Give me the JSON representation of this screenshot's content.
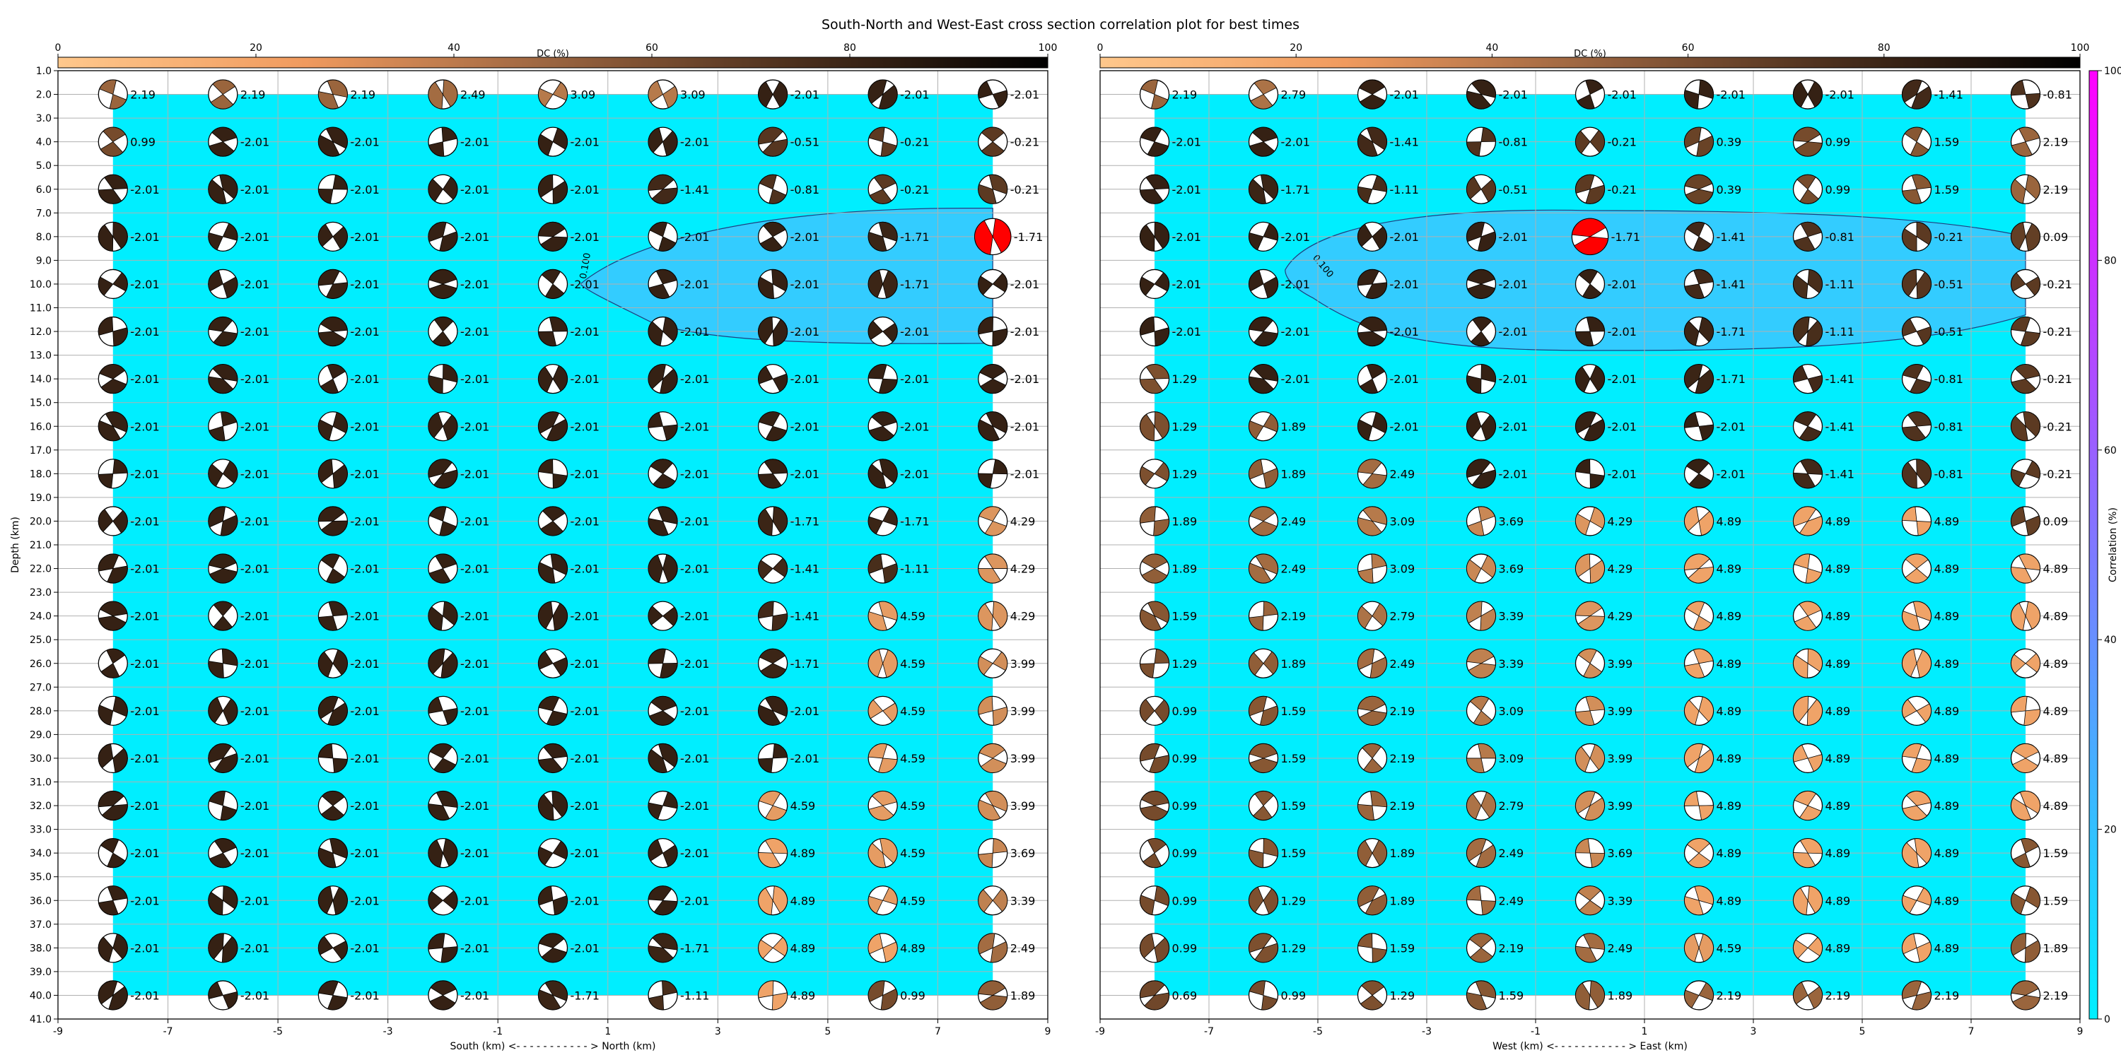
{
  "title": "South-North and West-East cross section correlation plot for best times",
  "colors": {
    "bg": "#00eeff",
    "region": "#33ccff",
    "region_line": "#1f3f7f",
    "beach_light": "#f2a66a",
    "beach_mid": "#7c4f2e",
    "beach_dark": "#2a1a10",
    "best_fill": "#ff0000",
    "corr_bottom": "#00f0ff",
    "corr_top": "#ff00ff"
  },
  "dc_colorbar": {
    "label": "DC (%)",
    "ticks": [
      0,
      20,
      40,
      60,
      80,
      100
    ]
  },
  "corr_colorbar": {
    "label": "Correlation (%)",
    "ticks": [
      0,
      20,
      40,
      60,
      80,
      100
    ]
  },
  "chart_data": [
    {
      "type": "scatter",
      "name": "south-north",
      "xlabel": "South (km) <- - - - - - - - - - - > North (km)",
      "ylabel": "Depth (km)",
      "xlim": [
        -9,
        9
      ],
      "ylim": [
        41,
        1
      ],
      "xticks": [
        -9,
        -7,
        -5,
        -3,
        -1,
        1,
        3,
        5,
        7,
        9
      ],
      "yticks": [
        1,
        2,
        3,
        4,
        5,
        6,
        7,
        8,
        9,
        10,
        11,
        12,
        13,
        14,
        15,
        16,
        17,
        18,
        19,
        20,
        21,
        22,
        23,
        24,
        25,
        26,
        27,
        28,
        29,
        30,
        31,
        32,
        33,
        34,
        35,
        36,
        37,
        38,
        39,
        40,
        41
      ],
      "contour_label": "0.100",
      "x_positions": [
        -8,
        -6,
        -4,
        -2,
        0,
        2,
        4,
        6,
        8
      ],
      "depths": [
        2,
        4,
        6,
        8,
        10,
        12,
        14,
        16,
        18,
        20,
        22,
        24,
        26,
        28,
        30,
        32,
        34,
        36,
        38,
        40
      ],
      "best": {
        "x": 8,
        "depth": 8
      },
      "labels": [
        [
          "2.19",
          "2.19",
          "2.19",
          "2.49",
          "3.09",
          "3.09",
          "-2.01",
          "-2.01",
          "-2.01"
        ],
        [
          "0.99",
          "-2.01",
          "-2.01",
          "-2.01",
          "-2.01",
          "-2.01",
          "-0.51",
          "-0.21",
          "-0.21"
        ],
        [
          "-2.01",
          "-2.01",
          "-2.01",
          "-2.01",
          "-2.01",
          "-1.41",
          "-0.81",
          "-0.21",
          "-0.21"
        ],
        [
          "-2.01",
          "-2.01",
          "-2.01",
          "-2.01",
          "-2.01",
          "-2.01",
          "-2.01",
          "-1.71",
          "-1.71"
        ],
        [
          "-2.01",
          "-2.01",
          "-2.01",
          "-2.01",
          "-2.01",
          "-2.01",
          "-2.01",
          "-1.71",
          "-2.01"
        ],
        [
          "-2.01",
          "-2.01",
          "-2.01",
          "-2.01",
          "-2.01",
          "-2.01",
          "-2.01",
          "-2.01",
          "-2.01"
        ],
        [
          "-2.01",
          "-2.01",
          "-2.01",
          "-2.01",
          "-2.01",
          "-2.01",
          "-2.01",
          "-2.01",
          "-2.01"
        ],
        [
          "-2.01",
          "-2.01",
          "-2.01",
          "-2.01",
          "-2.01",
          "-2.01",
          "-2.01",
          "-2.01",
          "-2.01"
        ],
        [
          "-2.01",
          "-2.01",
          "-2.01",
          "-2.01",
          "-2.01",
          "-2.01",
          "-2.01",
          "-2.01",
          "-2.01"
        ],
        [
          "-2.01",
          "-2.01",
          "-2.01",
          "-2.01",
          "-2.01",
          "-2.01",
          "-1.71",
          "-1.71",
          "4.29"
        ],
        [
          "-2.01",
          "-2.01",
          "-2.01",
          "-2.01",
          "-2.01",
          "-2.01",
          "-1.41",
          "-1.11",
          "4.29"
        ],
        [
          "-2.01",
          "-2.01",
          "-2.01",
          "-2.01",
          "-2.01",
          "-2.01",
          "-1.41",
          "4.59",
          "4.29"
        ],
        [
          "-2.01",
          "-2.01",
          "-2.01",
          "-2.01",
          "-2.01",
          "-2.01",
          "-1.71",
          "4.59",
          "3.99"
        ],
        [
          "-2.01",
          "-2.01",
          "-2.01",
          "-2.01",
          "-2.01",
          "-2.01",
          "-2.01",
          "4.59",
          "3.99"
        ],
        [
          "-2.01",
          "-2.01",
          "-2.01",
          "-2.01",
          "-2.01",
          "-2.01",
          "-2.01",
          "4.59",
          "3.99"
        ],
        [
          "-2.01",
          "-2.01",
          "-2.01",
          "-2.01",
          "-2.01",
          "-2.01",
          "4.59",
          "4.59",
          "3.99"
        ],
        [
          "-2.01",
          "-2.01",
          "-2.01",
          "-2.01",
          "-2.01",
          "-2.01",
          "4.89",
          "4.59",
          "3.69"
        ],
        [
          "-2.01",
          "-2.01",
          "-2.01",
          "-2.01",
          "-2.01",
          "-2.01",
          "4.89",
          "4.59",
          "3.39"
        ],
        [
          "-2.01",
          "-2.01",
          "-2.01",
          "-2.01",
          "-2.01",
          "-1.71",
          "4.89",
          "4.89",
          "2.49"
        ],
        [
          "-2.01",
          "-2.01",
          "-2.01",
          "-2.01",
          "-1.71",
          "-1.11",
          "4.89",
          "0.99",
          "1.89"
        ]
      ]
    },
    {
      "type": "scatter",
      "name": "west-east",
      "xlabel": "West (km) <- - - - - - - - - - - > East (km)",
      "ylabel": "",
      "xlim": [
        -9,
        9
      ],
      "ylim": [
        41,
        1
      ],
      "xticks": [
        -9,
        -7,
        -5,
        -3,
        -1,
        1,
        3,
        5,
        7,
        9
      ],
      "yticks": [],
      "contour_label": "0.100",
      "x_positions": [
        -8,
        -6,
        -4,
        -2,
        0,
        2,
        4,
        6,
        8
      ],
      "depths": [
        2,
        4,
        6,
        8,
        10,
        12,
        14,
        16,
        18,
        20,
        22,
        24,
        26,
        28,
        30,
        32,
        34,
        36,
        38,
        40
      ],
      "best": {
        "x": 0,
        "depth": 8
      },
      "labels": [
        [
          "2.19",
          "2.79",
          "-2.01",
          "-2.01",
          "-2.01",
          "-2.01",
          "-2.01",
          "-1.41",
          "-0.81"
        ],
        [
          "-2.01",
          "-2.01",
          "-1.41",
          "-0.81",
          "-0.21",
          "0.39",
          "0.99",
          "1.59",
          "2.19"
        ],
        [
          "-2.01",
          "-1.71",
          "-1.11",
          "-0.51",
          "-0.21",
          "0.39",
          "0.99",
          "1.59",
          "2.19"
        ],
        [
          "-2.01",
          "-2.01",
          "-2.01",
          "-2.01",
          "-1.71",
          "-1.41",
          "-0.81",
          "-0.21",
          "0.09"
        ],
        [
          "-2.01",
          "-2.01",
          "-2.01",
          "-2.01",
          "-2.01",
          "-1.41",
          "-1.11",
          "-0.51",
          "-0.21"
        ],
        [
          "-2.01",
          "-2.01",
          "-2.01",
          "-2.01",
          "-2.01",
          "-1.71",
          "-1.11",
          "-0.51",
          "-0.21"
        ],
        [
          "1.29",
          "-2.01",
          "-2.01",
          "-2.01",
          "-2.01",
          "-1.71",
          "-1.41",
          "-0.81",
          "-0.21"
        ],
        [
          "1.29",
          "1.89",
          "-2.01",
          "-2.01",
          "-2.01",
          "-2.01",
          "-1.41",
          "-0.81",
          "-0.21"
        ],
        [
          "1.29",
          "1.89",
          "2.49",
          "-2.01",
          "-2.01",
          "-2.01",
          "-1.41",
          "-0.81",
          "-0.21"
        ],
        [
          "1.89",
          "2.49",
          "3.09",
          "3.69",
          "4.29",
          "4.89",
          "4.89",
          "4.89",
          "0.09"
        ],
        [
          "1.89",
          "2.49",
          "3.09",
          "3.69",
          "4.29",
          "4.89",
          "4.89",
          "4.89",
          "4.89"
        ],
        [
          "1.59",
          "2.19",
          "2.79",
          "3.39",
          "4.29",
          "4.89",
          "4.89",
          "4.89",
          "4.89"
        ],
        [
          "1.29",
          "1.89",
          "2.49",
          "3.39",
          "3.99",
          "4.89",
          "4.89",
          "4.89",
          "4.89"
        ],
        [
          "0.99",
          "1.59",
          "2.19",
          "3.09",
          "3.99",
          "4.89",
          "4.89",
          "4.89",
          "4.89"
        ],
        [
          "0.99",
          "1.59",
          "2.19",
          "3.09",
          "3.99",
          "4.89",
          "4.89",
          "4.89",
          "4.89"
        ],
        [
          "0.99",
          "1.59",
          "2.19",
          "2.79",
          "3.99",
          "4.89",
          "4.89",
          "4.89",
          "4.89"
        ],
        [
          "0.99",
          "1.59",
          "1.89",
          "2.49",
          "3.69",
          "4.89",
          "4.89",
          "4.89",
          "1.59"
        ],
        [
          "0.99",
          "1.29",
          "1.89",
          "2.49",
          "3.39",
          "4.89",
          "4.89",
          "4.89",
          "1.59"
        ],
        [
          "0.99",
          "1.29",
          "1.59",
          "2.19",
          "2.49",
          "4.59",
          "4.89",
          "4.89",
          "1.89"
        ],
        [
          "0.69",
          "0.99",
          "1.29",
          "1.59",
          "1.89",
          "2.19",
          "2.19",
          "2.19",
          "2.19"
        ]
      ]
    }
  ]
}
